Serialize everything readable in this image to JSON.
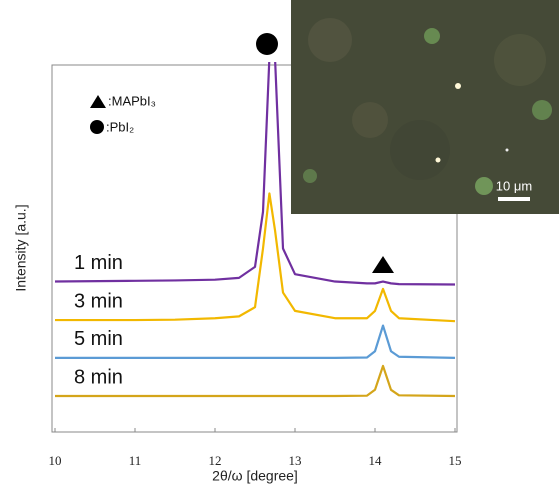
{
  "chart_data": {
    "type": "line",
    "xlabel": "2θ/ω [degree]",
    "ylabel": "Intensity [a.u.]",
    "xlim": [
      10,
      15
    ],
    "xticks": [
      10,
      11,
      12,
      13,
      14,
      15
    ],
    "ylim": [
      0,
      100
    ],
    "x": [
      10,
      11,
      11.5,
      12,
      12.3,
      12.5,
      12.6,
      12.68,
      12.75,
      12.85,
      13,
      13.5,
      13.9,
      14.0,
      14.1,
      14.2,
      14.3,
      15
    ],
    "series": [
      {
        "name": "1 min",
        "color": "#7030a0",
        "values": [
          41,
          41.2,
          41.3,
          41.5,
          42,
          45,
          60,
          102,
          102,
          50,
          43,
          41,
          40.5,
          40.5,
          41,
          40.5,
          40.3,
          40.2
        ]
      },
      {
        "name": "3 min",
        "color": "#f2b800",
        "values": [
          30.5,
          30.5,
          30.6,
          31,
          31.5,
          34,
          50,
          65,
          55,
          38,
          33,
          31,
          31,
          33,
          39,
          33,
          31,
          30.2
        ]
      },
      {
        "name": "5 min",
        "color": "#5b9bd5",
        "values": [
          20.2,
          20.2,
          20.2,
          20.2,
          20.2,
          20.2,
          20.2,
          20.2,
          20.2,
          20.2,
          20.2,
          20.2,
          20.3,
          22,
          29,
          22,
          20.5,
          20.2
        ]
      },
      {
        "name": "8 min",
        "color": "#d4a51a",
        "values": [
          9.8,
          9.8,
          9.8,
          9.8,
          9.8,
          9.8,
          9.8,
          9.8,
          9.8,
          9.8,
          9.8,
          9.8,
          9.9,
          11.5,
          18,
          11.5,
          10,
          9.8
        ]
      }
    ],
    "annotations": [
      ":MAPbI₃",
      ":PbI₂"
    ],
    "inset_scale_bar": "10 μm"
  }
}
